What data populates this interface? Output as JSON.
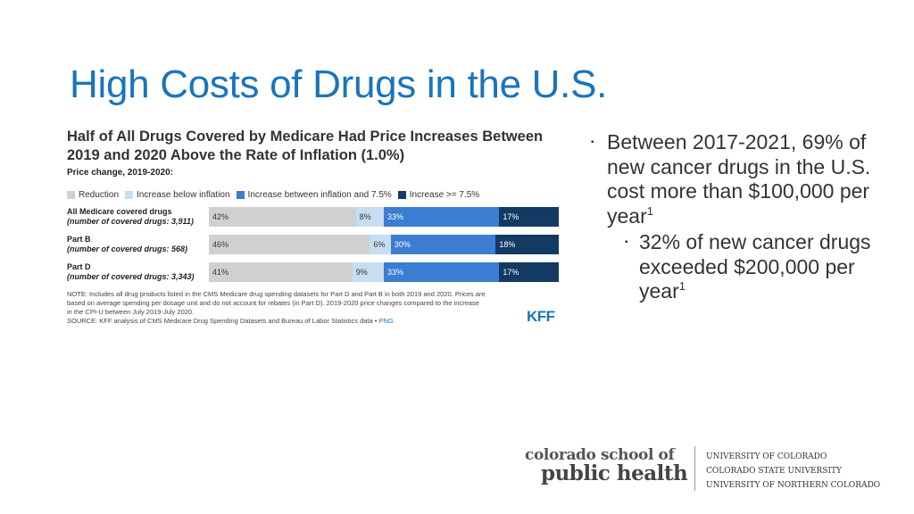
{
  "slide": {
    "title": "High Costs of Drugs in the U.S."
  },
  "chart_data": {
    "type": "bar",
    "stacked": "100%",
    "orientation": "horizontal",
    "title": "Half of All Drugs Covered by Medicare Had Price Increases Between 2019 and 2020 Above the Rate of Inflation (1.0%)",
    "subtitle": "Price change, 2019-2020:",
    "legend_position": "top",
    "categories": [
      {
        "main": "All Medicare covered drugs",
        "sub": "(number of covered drugs: 3,911)"
      },
      {
        "main": "Part B",
        "sub": "(number of covered drugs: 568)"
      },
      {
        "main": "Part D",
        "sub": "(number of covered drugs: 3,343)"
      }
    ],
    "series": [
      {
        "name": "Reduction",
        "color": "#d0d0d0",
        "text_color": "#333333",
        "values": [
          42,
          46,
          41
        ],
        "labels": [
          "42%",
          "46%",
          "41%"
        ]
      },
      {
        "name": "Increase below inflation",
        "color": "#c7def1",
        "text_color": "#333333",
        "values": [
          8,
          6,
          9
        ],
        "labels": [
          "8%",
          "6%",
          "9%"
        ]
      },
      {
        "name": "Increase between inflation and 7.5%",
        "color": "#3b7dd1",
        "text_color": "#ffffff",
        "values": [
          33,
          30,
          33
        ],
        "labels": [
          "33%",
          "30%",
          "33%"
        ]
      },
      {
        "name": "Increase >= 7.5%",
        "color": "#133a63",
        "text_color": "#ffffff",
        "values": [
          17,
          18,
          17
        ],
        "labels": [
          "17%",
          "18%",
          "17%"
        ]
      }
    ],
    "note": [
      "NOTE: Includes all drug products listed in the CMS Medicare drug spending datasets for Part D and Part B in both 2019 and 2020. Prices are",
      "based on average spending per dosage unit and do not account for rebates (in Part D). 2019-2020 price changes compared to the increase",
      "in the CPI-U between July 2019-July 2020."
    ],
    "source": "SOURCE: KFF analysis of CMS Medicare Drug Spending Datasets and Bureau of Labor Statistics data •",
    "png_link": "PNG",
    "logo": "KFF"
  },
  "bullets": {
    "level1_text": "Between 2017-2021, 69% of new cancer drugs in the U.S. cost more than $100,000 per year",
    "level1_sup": "1",
    "level2_text": "32% of new cancer drugs exceeded $200,000 per year",
    "level2_sup": "1",
    "marker": "▪"
  },
  "footer": {
    "school_line1": "colorado school of",
    "school_line2": "public health",
    "universities": [
      "UNIVERSITY OF COLORADO",
      "COLORADO STATE UNIVERSITY",
      "UNIVERSITY OF NORTHERN COLORADO"
    ]
  }
}
